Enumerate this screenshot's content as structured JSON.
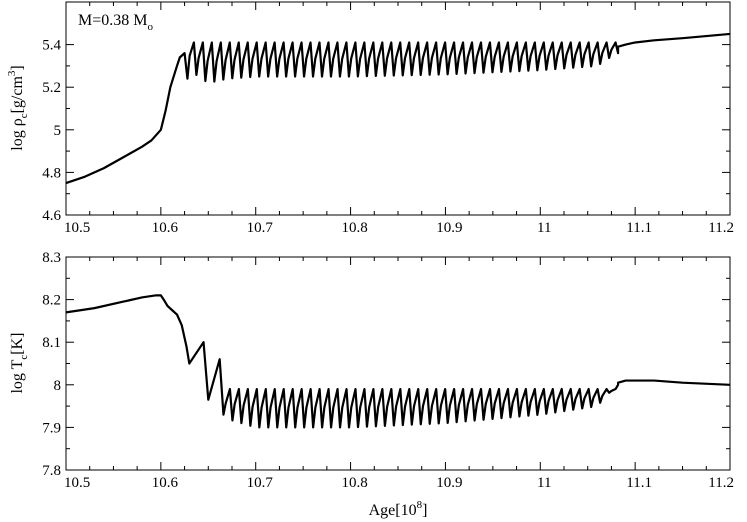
{
  "chart_data": [
    {
      "type": "line",
      "title": "",
      "annotation": {
        "text_main": "M=0.38 M",
        "text_sub": "o"
      },
      "xlabel": "",
      "ylabel_parts": {
        "prefix": "log ρ",
        "sub": "c",
        "mid": "[g/cm",
        "sup": "3",
        "suffix": "]"
      },
      "xlim": [
        10.5,
        11.2
      ],
      "ylim": [
        4.6,
        5.6
      ],
      "x_ticks": [
        "10.5",
        "10.6",
        "10.7",
        "10.8",
        "10.9",
        "11",
        "11.1",
        "11.2"
      ],
      "y_ticks": [
        "4.6",
        "4.8",
        "5",
        "5.2",
        "5.4"
      ],
      "y_tick_values": [
        4.6,
        4.8,
        5.0,
        5.2,
        5.4
      ],
      "grid": false,
      "series": [
        {
          "baseline_x": [
            10.5,
            10.52,
            10.54,
            10.56,
            10.58,
            10.59,
            10.6,
            10.605,
            10.61,
            10.617,
            10.62
          ],
          "baseline_y": [
            4.75,
            4.78,
            4.82,
            4.87,
            4.92,
            4.95,
            5.0,
            5.09,
            5.2,
            5.3,
            5.34
          ],
          "first_pulse": {
            "x_peak": 10.625,
            "y_peak": 5.36,
            "x_min": 10.628,
            "y_min": 5.24
          },
          "pulse_train": {
            "x_start": 10.628,
            "x_end": 11.082,
            "count": 48,
            "y_peak": 5.41,
            "y_min_profile": [
              [
                10.63,
                5.28
              ],
              [
                10.65,
                5.22
              ],
              [
                10.67,
                5.24
              ],
              [
                10.7,
                5.25
              ],
              [
                10.8,
                5.25
              ],
              [
                10.9,
                5.26
              ],
              [
                11.0,
                5.28
              ],
              [
                11.06,
                5.3
              ],
              [
                11.08,
                5.36
              ]
            ]
          },
          "tail_x": [
            11.082,
            11.09,
            11.1,
            11.12,
            11.15,
            11.2
          ],
          "tail_y": [
            5.39,
            5.4,
            5.41,
            5.42,
            5.43,
            5.45
          ]
        }
      ]
    },
    {
      "type": "line",
      "title": "",
      "xlabel_parts": {
        "prefix": "Age[10",
        "sup": "8",
        "suffix": "]"
      },
      "ylabel_parts": {
        "prefix": "log T",
        "sub": "c",
        "mid": "[K]",
        "sup": "",
        "suffix": ""
      },
      "xlim": [
        10.5,
        11.2
      ],
      "ylim": [
        7.8,
        8.3
      ],
      "x_ticks": [
        "10.5",
        "10.6",
        "10.7",
        "10.8",
        "10.9",
        "11",
        "11.1",
        "11.2"
      ],
      "y_ticks": [
        "7.8",
        "7.9",
        "8",
        "8.1",
        "8.2",
        "8.3"
      ],
      "y_tick_values": [
        7.8,
        7.9,
        8.0,
        8.1,
        8.2,
        8.3
      ],
      "grid": false,
      "series": [
        {
          "baseline_x": [
            10.5,
            10.53,
            10.56,
            10.58,
            10.595,
            10.6,
            10.603,
            10.607,
            10.612,
            10.617,
            10.622,
            10.627,
            10.63
          ],
          "baseline_y": [
            8.17,
            8.18,
            8.195,
            8.205,
            8.21,
            8.21,
            8.2,
            8.185,
            8.175,
            8.165,
            8.14,
            8.09,
            8.05
          ],
          "early_pulses": [
            {
              "x_peak": 10.645,
              "y_peak": 8.1,
              "x_min": 10.65,
              "y_min": 7.965
            },
            {
              "x_peak": 10.662,
              "y_peak": 8.06,
              "x_min": 10.666,
              "y_min": 7.93
            }
          ],
          "pulse_train": {
            "x_start": 10.666,
            "x_end": 11.082,
            "count": 44,
            "y_peak": 7.99,
            "y_min_profile": [
              [
                10.67,
                7.92
              ],
              [
                10.7,
                7.9
              ],
              [
                10.8,
                7.9
              ],
              [
                10.9,
                7.91
              ],
              [
                11.0,
                7.93
              ],
              [
                11.06,
                7.95
              ],
              [
                11.08,
                8.0
              ]
            ]
          },
          "tail_x": [
            11.082,
            11.09,
            11.1,
            11.12,
            11.15,
            11.2
          ],
          "tail_y": [
            8.005,
            8.01,
            8.01,
            8.01,
            8.005,
            8.0
          ]
        }
      ]
    }
  ]
}
